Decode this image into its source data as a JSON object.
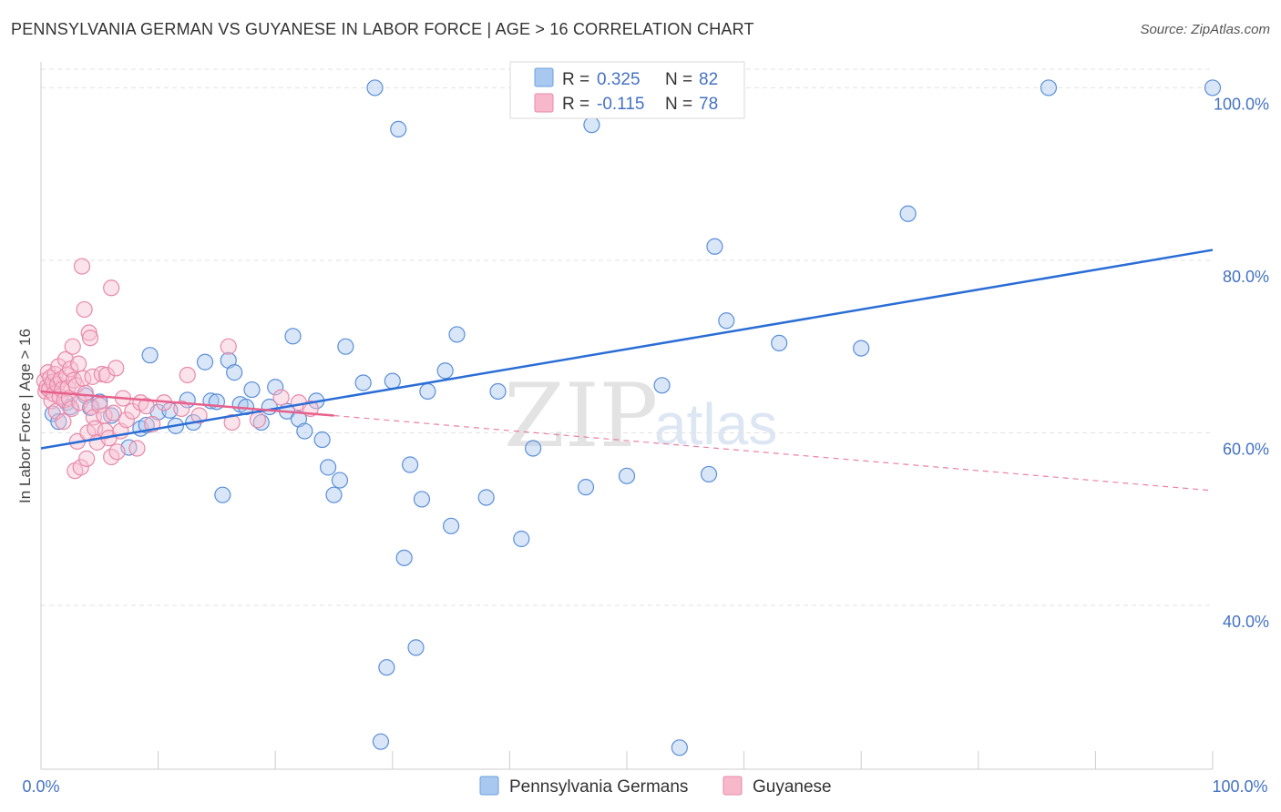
{
  "title": "PENNSYLVANIA GERMAN VS GUYANESE IN LABOR FORCE | AGE > 16 CORRELATION CHART",
  "source": "Source: ZipAtlas.com",
  "watermark": {
    "zip": "ZIP",
    "atlas": "atlas"
  },
  "legend_box": {
    "rows": [
      {
        "r_label": "R =",
        "r_value": "0.325",
        "n_label": "N =",
        "n_value": "82",
        "color": "#a8c8f0",
        "stroke": "#6a9fe0"
      },
      {
        "r_label": "R =",
        "r_value": "-0.115",
        "n_label": "N =",
        "n_value": "78",
        "color": "#f7b8cc",
        "stroke": "#e888a8"
      }
    ]
  },
  "colors": {
    "blue": "#4472c4",
    "blue_line": "#2a6dd6",
    "pink": "#e8608c",
    "blue_fill": "#a8c8f0",
    "pink_fill": "#f7c0d2"
  },
  "chart_data": {
    "type": "scatter",
    "title": "PENNSYLVANIA GERMAN VS GUYANESE IN LABOR FORCE | AGE > 16 CORRELATION CHART",
    "xlabel": "",
    "ylabel": "In Labor Force | Age > 16",
    "xlim": [
      0,
      100
    ],
    "ylim": [
      21,
      103
    ],
    "x_tick_labels": [
      "0.0%",
      "100.0%"
    ],
    "y_ticks": [
      40,
      60,
      80,
      100
    ],
    "y_tick_labels": [
      "40.0%",
      "60.0%",
      "80.0%",
      "100.0%"
    ],
    "grid": true,
    "legend_position": "bottom",
    "series": [
      {
        "name": "Pennsylvania Germans",
        "color": "#4472c4",
        "trend": {
          "x": [
            0,
            100
          ],
          "y": [
            58.2,
            81.2
          ],
          "style": "solid"
        },
        "points": [
          [
            1.0,
            62.2
          ],
          [
            1.5,
            61.3
          ],
          [
            2.2,
            63.5
          ],
          [
            2.5,
            63.0
          ],
          [
            3.8,
            64.3
          ],
          [
            4.2,
            62.9
          ],
          [
            5.0,
            63.6
          ],
          [
            6.0,
            62.0
          ],
          [
            7.5,
            58.3
          ],
          [
            8.5,
            60.5
          ],
          [
            9.0,
            60.9
          ],
          [
            9.3,
            69.0
          ],
          [
            10.0,
            62.4
          ],
          [
            11.0,
            62.6
          ],
          [
            11.5,
            60.8
          ],
          [
            12.5,
            63.8
          ],
          [
            13.0,
            61.2
          ],
          [
            14.0,
            68.2
          ],
          [
            14.5,
            63.7
          ],
          [
            15.0,
            63.6
          ],
          [
            15.5,
            52.8
          ],
          [
            16.0,
            68.4
          ],
          [
            16.5,
            67.0
          ],
          [
            17.0,
            63.3
          ],
          [
            17.5,
            63.0
          ],
          [
            18.0,
            65.0
          ],
          [
            18.8,
            61.2
          ],
          [
            19.5,
            63.0
          ],
          [
            20.0,
            65.3
          ],
          [
            21.0,
            62.5
          ],
          [
            21.5,
            71.2
          ],
          [
            22.0,
            61.6
          ],
          [
            22.5,
            60.2
          ],
          [
            23.5,
            63.7
          ],
          [
            24.0,
            59.2
          ],
          [
            24.5,
            56.0
          ],
          [
            25.0,
            52.8
          ],
          [
            25.5,
            54.5
          ],
          [
            26.0,
            70.0
          ],
          [
            27.5,
            65.8
          ],
          [
            28.5,
            100.0
          ],
          [
            29.0,
            24.2
          ],
          [
            29.5,
            32.8
          ],
          [
            30.0,
            66.0
          ],
          [
            30.5,
            95.2
          ],
          [
            31.0,
            45.5
          ],
          [
            31.5,
            56.3
          ],
          [
            32.0,
            35.1
          ],
          [
            32.5,
            52.3
          ],
          [
            33.0,
            64.8
          ],
          [
            34.5,
            67.2
          ],
          [
            35.0,
            49.2
          ],
          [
            35.5,
            71.4
          ],
          [
            38.0,
            52.5
          ],
          [
            39.0,
            64.8
          ],
          [
            41.0,
            47.7
          ],
          [
            42.0,
            58.2
          ],
          [
            43.0,
            100.0
          ],
          [
            46.5,
            53.7
          ],
          [
            47.0,
            95.7
          ],
          [
            48.5,
            100.0
          ],
          [
            50.0,
            55.0
          ],
          [
            53.0,
            65.5
          ],
          [
            54.5,
            23.5
          ],
          [
            57.0,
            55.2
          ],
          [
            57.5,
            81.6
          ],
          [
            58.5,
            73.0
          ],
          [
            63.0,
            70.4
          ],
          [
            70.0,
            69.8
          ],
          [
            74.0,
            85.4
          ],
          [
            86.0,
            100.0
          ],
          [
            100.0,
            100.0
          ]
        ]
      },
      {
        "name": "Guyanese",
        "color": "#e8608c",
        "trend": {
          "x": [
            0,
            25
          ],
          "y": [
            64.8,
            62.0
          ],
          "style": "solid",
          "extension": {
            "x": [
              25,
              100
            ],
            "y": [
              62.0,
              53.3
            ],
            "style": "dashed"
          }
        },
        "points": [
          [
            0.3,
            66.0
          ],
          [
            0.4,
            64.8
          ],
          [
            0.5,
            65.3
          ],
          [
            0.6,
            67.0
          ],
          [
            0.7,
            65.0
          ],
          [
            0.8,
            66.4
          ],
          [
            0.9,
            63.7
          ],
          [
            1.0,
            65.9
          ],
          [
            1.1,
            64.5
          ],
          [
            1.2,
            66.8
          ],
          [
            1.3,
            62.5
          ],
          [
            1.4,
            65.6
          ],
          [
            1.5,
            67.7
          ],
          [
            1.6,
            64.2
          ],
          [
            1.7,
            66.2
          ],
          [
            1.8,
            65.0
          ],
          [
            1.9,
            61.3
          ],
          [
            2.0,
            63.8
          ],
          [
            2.1,
            68.5
          ],
          [
            2.2,
            66.7
          ],
          [
            2.3,
            65.2
          ],
          [
            2.4,
            64.0
          ],
          [
            2.5,
            67.4
          ],
          [
            2.6,
            62.8
          ],
          [
            2.7,
            70.0
          ],
          [
            2.8,
            66.1
          ],
          [
            2.9,
            55.6
          ],
          [
            3.0,
            65.5
          ],
          [
            3.1,
            59.0
          ],
          [
            3.2,
            68.0
          ],
          [
            3.3,
            63.5
          ],
          [
            3.4,
            56.0
          ],
          [
            3.5,
            79.3
          ],
          [
            3.6,
            66.3
          ],
          [
            3.7,
            74.3
          ],
          [
            3.8,
            64.6
          ],
          [
            3.9,
            57.0
          ],
          [
            4.0,
            60.0
          ],
          [
            4.1,
            71.6
          ],
          [
            4.2,
            71.0
          ],
          [
            4.3,
            63.0
          ],
          [
            4.4,
            66.5
          ],
          [
            4.5,
            61.8
          ],
          [
            4.6,
            60.5
          ],
          [
            4.8,
            58.9
          ],
          [
            5.0,
            63.2
          ],
          [
            5.2,
            66.8
          ],
          [
            5.4,
            62.0
          ],
          [
            5.5,
            60.2
          ],
          [
            5.6,
            66.7
          ],
          [
            5.8,
            59.4
          ],
          [
            6.0,
            57.2
          ],
          [
            6.0,
            76.8
          ],
          [
            6.2,
            62.3
          ],
          [
            6.4,
            67.5
          ],
          [
            6.5,
            57.8
          ],
          [
            6.8,
            60.2
          ],
          [
            7.0,
            64.0
          ],
          [
            7.3,
            61.5
          ],
          [
            7.8,
            62.5
          ],
          [
            8.2,
            58.2
          ],
          [
            8.5,
            63.5
          ],
          [
            9.0,
            63.1
          ],
          [
            9.5,
            61.0
          ],
          [
            10.5,
            63.5
          ],
          [
            12.0,
            62.8
          ],
          [
            12.5,
            66.7
          ],
          [
            13.5,
            62.0
          ],
          [
            16.0,
            70.0
          ],
          [
            16.3,
            61.2
          ],
          [
            18.5,
            61.5
          ],
          [
            20.5,
            64.1
          ],
          [
            22.0,
            63.5
          ],
          [
            23.0,
            62.8
          ]
        ]
      }
    ]
  }
}
